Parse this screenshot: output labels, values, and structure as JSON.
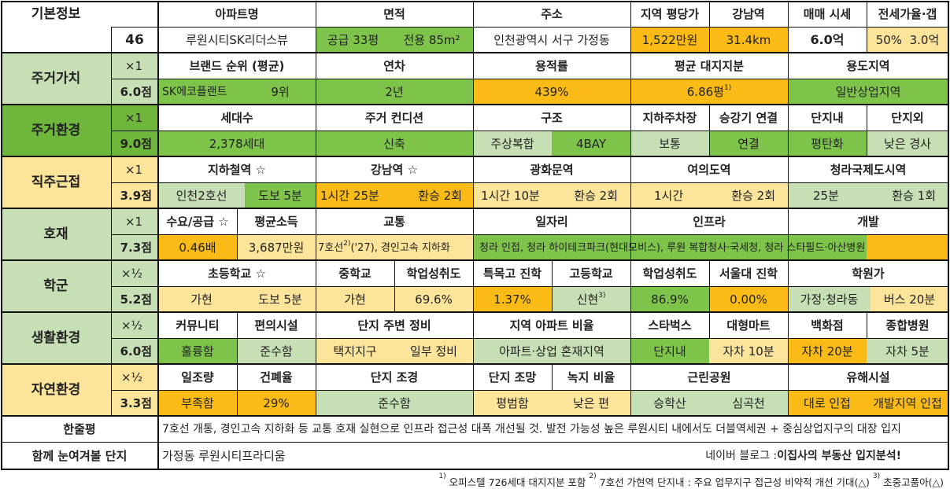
{
  "basic": {
    "label": "기본정보",
    "number": "46",
    "headers": [
      "아파트명",
      "면적",
      "주소",
      "지역 평당가",
      "강남역",
      "매매 시세",
      "전세가율·갭"
    ],
    "apt_name": "루원시티SK리더스뷰",
    "area_supply": "공급 33평",
    "area_exclusive": "전용 85m²",
    "address": "인천광역시 서구 가정동",
    "price_per_pyeong": "1,522만원",
    "gangnam_distance": "31.4km",
    "sale_price": "6.0억",
    "jeonse_ratio": "50%",
    "gap": "3.0억"
  },
  "housing_value": {
    "label": "주거가치",
    "mult": "×1",
    "score": "6.0점",
    "headers": [
      "브랜드 순위 (평균)",
      "연차",
      "용적률",
      "평균 대지지분",
      "용도지역"
    ],
    "brand": "SK에코플랜트",
    "brand_rank": "9위",
    "age": "2년",
    "far": "439%",
    "land_share": "6.86평",
    "land_share_note": "1)",
    "zone": "일반상업지역"
  },
  "housing_env": {
    "label": "주거환경",
    "mult": "×1",
    "score": "9.0점",
    "headers": [
      "세대수",
      "주거 컨디션",
      "구조",
      "지하주차장",
      "승강기 연결",
      "단지내",
      "단지외"
    ],
    "households": "2,378세대",
    "condition": "신축",
    "structure_type": "주상복합",
    "bay": "4BAY",
    "parking": "보통",
    "elevator": "연결",
    "inner": "평탄화",
    "outer": "낮은 경사"
  },
  "commute": {
    "label": "직주근접",
    "mult": "×1",
    "score": "3.9점",
    "headers": [
      "지하철역 ☆",
      "강남역 ☆",
      "광화문역",
      "여의도역",
      "청라국제도시역"
    ],
    "station": "인천2호선",
    "station_walk": "도보 5분",
    "gangnam_time": "1시간 25분",
    "gangnam_transfer": "환승 2회",
    "gwanghwamun_time": "1시간 10분",
    "gwanghwamun_transfer": "환승 2회",
    "yeouido_time": "1시간",
    "yeouido_transfer": "환승 2회",
    "cheongna_time": "25분",
    "cheongna_transfer": "환승 1회"
  },
  "development": {
    "label": "호재",
    "mult": "×1",
    "score": "7.3점",
    "headers": [
      "수요/공급 ☆",
      "평균소득",
      "교통",
      "일자리",
      "인프라",
      "개발"
    ],
    "supply_demand": "0.46배",
    "income": "3,687만원",
    "transport_pre": "7호선",
    "transport_note": "2)",
    "transport_post": " ('27), 경인고속 지하화",
    "jobs_text": "청라 인접, 청라 하이테크파크(현대모비스), 루원 복합청사·국세청, 청라 스타필드·아산병원"
  },
  "school": {
    "label": "학군",
    "mult": "×½",
    "score": "5.2점",
    "headers": [
      "초등학교 ☆",
      "중학교",
      "학업성취도",
      "특목고 진학",
      "고등학교",
      "학업성취도",
      "서울대 진학",
      "학원가"
    ],
    "elementary": "가현",
    "elementary_walk": "도보 5분",
    "middle": "가현",
    "middle_achievement": "69.6%",
    "special_high": "1.37%",
    "high": "신현",
    "high_note": "3)",
    "high_achievement": "86.9%",
    "snu": "0.00%",
    "academy": "가정·청라동",
    "academy_time": "버스 20분"
  },
  "living": {
    "label": "생활환경",
    "mult": "×½",
    "score": "6.0점",
    "headers": [
      "커뮤니티",
      "편의시설",
      "단지 주변 정비",
      "지역 아파트 비율",
      "스타벅스",
      "대형마트",
      "백화점",
      "종합병원"
    ],
    "community": "훌륭함",
    "convenience": "준수함",
    "surround_type": "택지지구",
    "surround_state": "일부 정비",
    "apt_ratio": "아파트·상업 혼재지역",
    "starbucks": "단지내",
    "mart": "자차 10분",
    "department": "자차 20분",
    "hospital": "자차 5분"
  },
  "nature": {
    "label": "자연환경",
    "mult": "×½",
    "score": "3.3점",
    "headers": [
      "일조량",
      "건폐율",
      "단지 조경",
      "단지 조망",
      "녹지 비율",
      "근린공원",
      "유해시설"
    ],
    "sunlight": "부족함",
    "coverage": "29%",
    "landscape": "준수함",
    "view": "평범함",
    "green": "낮은 편",
    "park1": "승학산",
    "park2": "심곡천",
    "hazard1": "대로 인접",
    "hazard2": "개발지역 인접"
  },
  "summary": {
    "label": "한줄평",
    "text": "7호선 개통, 경인고속 지하화 등 교통 호재 실현으로 인프라 접근성 대폭 개선될 것. 발전 가능성 높은 루원시티 내에서도 더블역세권 + 중심상업지구의 대장 입지"
  },
  "compare": {
    "label": "함께 눈여겨볼 단지",
    "text": "가정동 루원시티프라디움",
    "blog_pre": "네이버 블로그 : ",
    "blog_name": "이집사의 부동산 입지분석!"
  },
  "footnote": {
    "n1": "1)",
    "t1": " 오피스텔 726세대 대지지분 포함 ",
    "n2": "2)",
    "t2": " 7호선 가현역 단지내 : 주요 업무지구 접근성 비약적 개선 기대(△) ",
    "n3": "3)",
    "t3": " 초중고품아(△)"
  }
}
